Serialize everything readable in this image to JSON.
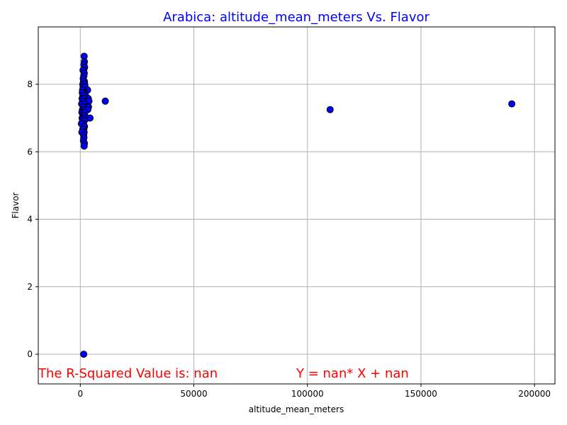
{
  "chart_data": {
    "type": "scatter",
    "title": "Arabica: altitude_mean_meters Vs. Flavor",
    "xlabel": "altitude_mean_meters",
    "ylabel": "Flavor",
    "xlim": [
      -18500,
      209000
    ],
    "ylim": [
      -0.88,
      9.7
    ],
    "xticks": [
      0,
      50000,
      100000,
      150000,
      200000
    ],
    "yticks": [
      0,
      2,
      4,
      6,
      8
    ],
    "grid": true,
    "colors": {
      "title": "#0000ff",
      "point_fill": "#0000ff",
      "point_edge": "#000000",
      "annotation": "#ff0000",
      "grid": "#b0b0b0"
    },
    "points": [
      [
        1700,
        8.83
      ],
      [
        1800,
        8.67
      ],
      [
        1650,
        8.58
      ],
      [
        1900,
        8.5
      ],
      [
        1500,
        8.42
      ],
      [
        1200,
        8.42
      ],
      [
        1750,
        8.33
      ],
      [
        1600,
        8.25
      ],
      [
        1300,
        8.17
      ],
      [
        1850,
        8.08
      ],
      [
        1400,
        8.08
      ],
      [
        1100,
        8.0
      ],
      [
        1950,
        8.0
      ],
      [
        1550,
        7.92
      ],
      [
        1250,
        7.92
      ],
      [
        2100,
        7.92
      ],
      [
        3200,
        7.83
      ],
      [
        1450,
        7.83
      ],
      [
        1000,
        7.83
      ],
      [
        1680,
        7.75
      ],
      [
        1350,
        7.75
      ],
      [
        900,
        7.75
      ],
      [
        1800,
        7.67
      ],
      [
        2300,
        7.67
      ],
      [
        1150,
        7.67
      ],
      [
        800,
        7.58
      ],
      [
        3500,
        7.58
      ],
      [
        1620,
        7.58
      ],
      [
        1400,
        7.5
      ],
      [
        2800,
        7.5
      ],
      [
        3800,
        7.5
      ],
      [
        11000,
        7.5
      ],
      [
        1050,
        7.5
      ],
      [
        1700,
        7.42
      ],
      [
        600,
        7.42
      ],
      [
        1900,
        7.42
      ],
      [
        2500,
        7.33
      ],
      [
        1300,
        7.33
      ],
      [
        3600,
        7.33
      ],
      [
        1500,
        7.25
      ],
      [
        950,
        7.25
      ],
      [
        1800,
        7.25
      ],
      [
        3300,
        7.25
      ],
      [
        700,
        7.17
      ],
      [
        1600,
        7.17
      ],
      [
        2000,
        7.17
      ],
      [
        1200,
        7.08
      ],
      [
        1450,
        7.08
      ],
      [
        800,
        7.0
      ],
      [
        1650,
        7.0
      ],
      [
        3100,
        7.0
      ],
      [
        4300,
        7.0
      ],
      [
        1000,
        6.92
      ],
      [
        1750,
        6.92
      ],
      [
        1350,
        6.83
      ],
      [
        500,
        6.83
      ],
      [
        1850,
        6.75
      ],
      [
        1550,
        6.67
      ],
      [
        1100,
        6.67
      ],
      [
        1700,
        6.58
      ],
      [
        700,
        6.58
      ],
      [
        1500,
        6.5
      ],
      [
        1600,
        6.42
      ],
      [
        1400,
        6.33
      ],
      [
        1800,
        6.25
      ],
      [
        1700,
        6.17
      ],
      [
        1500,
        0.0
      ],
      [
        110000,
        7.25
      ],
      [
        190000,
        7.42
      ]
    ],
    "annotations": {
      "r_squared": "The R-Squared Value is: nan",
      "equation": "Y = nan* X + nan"
    }
  }
}
